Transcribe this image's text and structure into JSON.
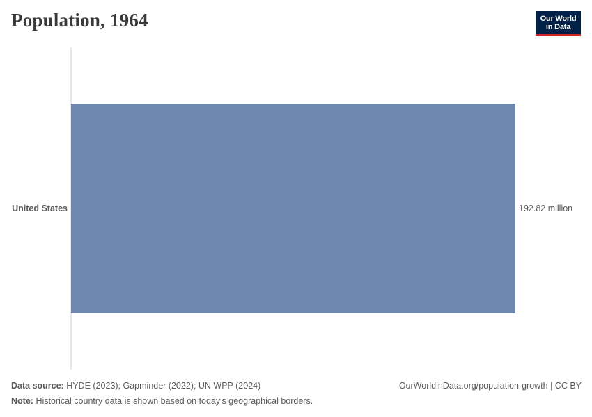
{
  "header": {
    "title": "Population, 1964",
    "logo_line1": "Our World",
    "logo_line2": "in Data"
  },
  "chart_data": {
    "type": "bar",
    "orientation": "horizontal",
    "title": "Population, 1964",
    "categories": [
      "United States"
    ],
    "values": [
      192820000
    ],
    "value_labels": [
      "192.82 million"
    ],
    "bar_color": "#6f88b0",
    "axis_color": "#cccccc",
    "xlim": [
      0,
      192820000
    ],
    "grid": false
  },
  "footer": {
    "source_label": "Data source:",
    "source_text": "HYDE (2023); Gapminder (2022); UN WPP (2024)",
    "note_label": "Note:",
    "note_text": "Historical country data is shown based on today's geographical borders.",
    "link_text": "OurWorldinData.org/population-growth | CC BY"
  }
}
